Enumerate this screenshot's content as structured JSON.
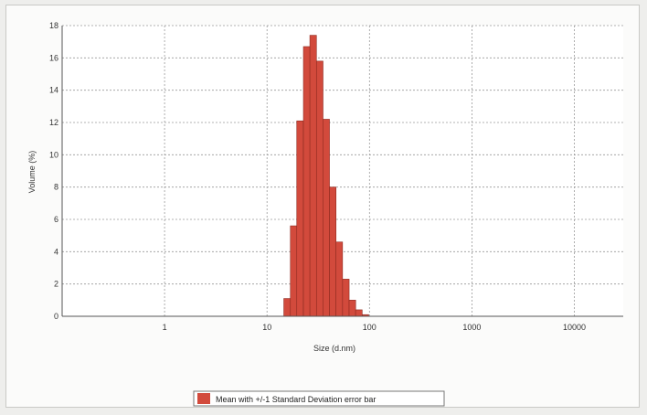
{
  "chart_data": {
    "type": "bar",
    "title": "",
    "xlabel": "Size (d.nm)",
    "ylabel": "Volume (%)",
    "x_scale": "log",
    "xlim": [
      0.1,
      30000
    ],
    "ylim": [
      0,
      18
    ],
    "x_ticks": [
      "1",
      "10",
      "100",
      "1000",
      "10000"
    ],
    "y_ticks": [
      "0",
      "2",
      "4",
      "6",
      "8",
      "10",
      "12",
      "14",
      "16",
      "18"
    ],
    "grid": true,
    "legend": {
      "label": "Mean with +/-1 Standard Deviation error bar",
      "position": "bottom-center"
    },
    "series": [
      {
        "name": "Mean with +/-1 Standard Deviation error bar",
        "color": "#d24a3c",
        "x": [
          15.7,
          18.2,
          21.0,
          24.4,
          28.2,
          32.7,
          37.8,
          43.8,
          50.7,
          58.8,
          68.1,
          78.8,
          91.3
        ],
        "values": [
          1.1,
          5.6,
          12.1,
          16.7,
          17.4,
          15.8,
          12.2,
          8.0,
          4.6,
          2.3,
          1.0,
          0.4,
          0.1
        ]
      }
    ]
  }
}
